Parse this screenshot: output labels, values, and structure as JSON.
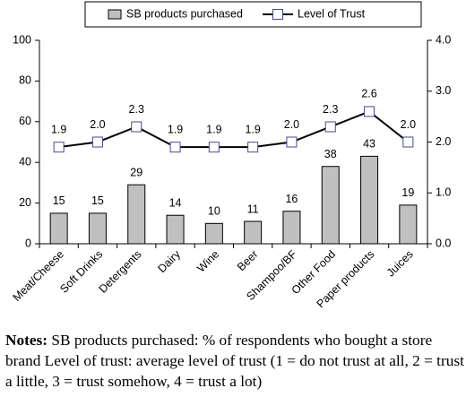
{
  "chart_data": {
    "type": "bar",
    "categories": [
      "Meat/Cheese",
      "Soft Drinks",
      "Detergents",
      "Dairy",
      "Wine",
      "Beer",
      "Shampoo/BF",
      "Other Food",
      "Paper products",
      "Juices"
    ],
    "series": [
      {
        "name": "SB products purchased",
        "type": "bar",
        "color": "#c0c0c0",
        "values": [
          15,
          15,
          29,
          14,
          10,
          11,
          16,
          38,
          43,
          19
        ]
      },
      {
        "name": "Level of Trust",
        "type": "line",
        "axis": "y2",
        "color": "#000000",
        "marker_color": "#4a4a8a",
        "values": [
          1.9,
          2.0,
          2.3,
          1.9,
          1.9,
          1.9,
          2.0,
          2.3,
          2.6,
          2.0
        ],
        "value_labels": [
          "1.9",
          "2.0",
          "2.3",
          "1.9",
          "1.9",
          "1.9",
          "2.0",
          "2.3",
          "2.6",
          "2.0"
        ]
      }
    ],
    "ylim": [
      0,
      100
    ],
    "yticks": [
      0,
      20,
      40,
      60,
      80,
      100
    ],
    "y2lim": [
      0,
      4
    ],
    "y2ticks": [
      {
        "value": 0,
        "label": "0.0"
      },
      {
        "value": 1,
        "label": "1.0"
      },
      {
        "value": 2,
        "label": "2.0"
      },
      {
        "value": 3,
        "label": "3.0"
      },
      {
        "value": 4,
        "label": "4.0"
      }
    ],
    "grid": false,
    "legend": "top",
    "notes": {
      "label": "Notes:",
      "text": "SB products purchased: % of respondents who bought a store brand Level of trust: average level of trust (1 = do not trust at all, 2 = trust a little, 3 = trust somehow, 4 = trust a lot)"
    }
  }
}
